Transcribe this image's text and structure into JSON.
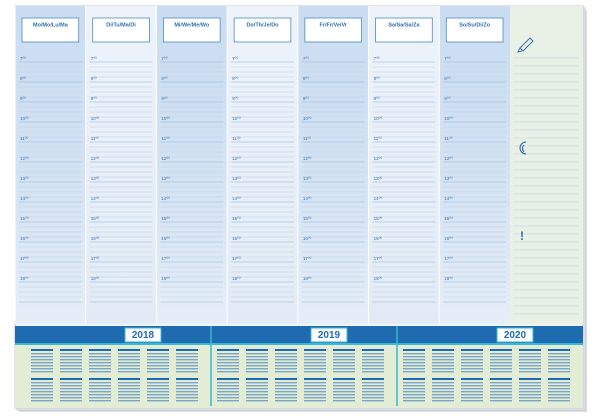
{
  "days": [
    "Mo/Mo/Lu/Ma",
    "Di/Tu/Ma/Di",
    "Mi/We/Me/Wo",
    "Do/Th/Je/Do",
    "Fr/Fr/Ve/Vr",
    "Sa/Sa/Sa/Za",
    "So/Su/Di/Zo"
  ],
  "hours": [
    "7⁰⁰",
    "8⁰⁰",
    "9⁰⁰",
    "10⁰⁰",
    "11⁰⁰",
    "12⁰⁰",
    "13⁰⁰",
    "14⁰⁰",
    "15⁰⁰",
    "16⁰⁰",
    "17⁰⁰",
    "18⁰⁰"
  ],
  "sidebar": {
    "mark": "!"
  },
  "calendar": {
    "years": [
      "2018",
      "2019",
      "2020"
    ]
  }
}
